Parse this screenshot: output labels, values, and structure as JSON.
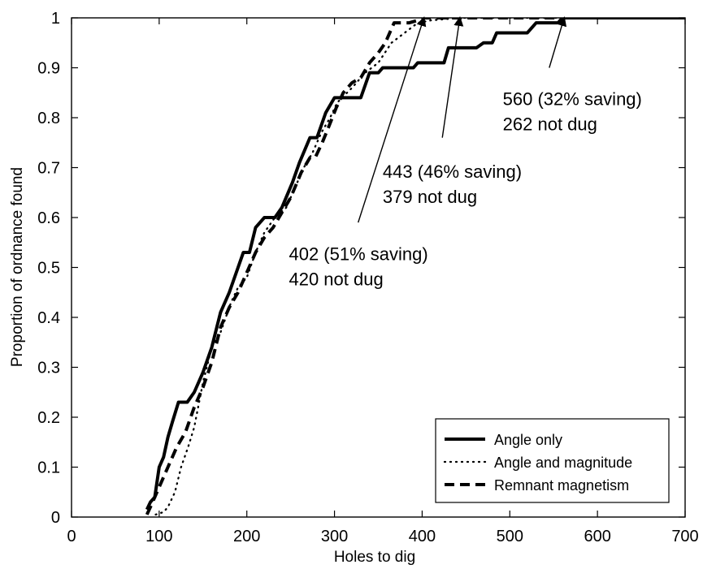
{
  "chart_data": {
    "type": "line",
    "title": "",
    "xlabel": "Holes to dig",
    "ylabel": "Proportion of ordnance found",
    "xlim": [
      0,
      700
    ],
    "ylim": [
      0,
      1
    ],
    "xticks": [
      0,
      100,
      200,
      300,
      400,
      500,
      600,
      700
    ],
    "yticks": [
      0,
      0.1,
      0.2,
      0.3,
      0.4,
      0.5,
      0.6,
      0.7,
      0.8,
      0.9,
      1
    ],
    "ytick_labels": [
      "0",
      "0.1",
      "0.2",
      "0.3",
      "0.4",
      "0.5",
      "0.6",
      "0.7",
      "0.8",
      "0.9",
      "1"
    ],
    "grid": false,
    "legend_position": "bottom-right",
    "series": [
      {
        "name": "Angle only",
        "line_style": "solid",
        "color": "#000000",
        "points": [
          [
            86,
            0.015
          ],
          [
            90,
            0.03
          ],
          [
            95,
            0.04
          ],
          [
            100,
            0.1
          ],
          [
            105,
            0.12
          ],
          [
            110,
            0.16
          ],
          [
            115,
            0.19
          ],
          [
            122,
            0.23
          ],
          [
            132,
            0.23
          ],
          [
            140,
            0.25
          ],
          [
            150,
            0.29
          ],
          [
            160,
            0.34
          ],
          [
            170,
            0.41
          ],
          [
            180,
            0.45
          ],
          [
            190,
            0.5
          ],
          [
            196,
            0.53
          ],
          [
            203,
            0.53
          ],
          [
            210,
            0.58
          ],
          [
            220,
            0.6
          ],
          [
            232,
            0.6
          ],
          [
            240,
            0.62
          ],
          [
            252,
            0.67
          ],
          [
            260,
            0.71
          ],
          [
            272,
            0.76
          ],
          [
            280,
            0.76
          ],
          [
            290,
            0.81
          ],
          [
            300,
            0.84
          ],
          [
            330,
            0.84
          ],
          [
            340,
            0.89
          ],
          [
            350,
            0.89
          ],
          [
            355,
            0.9
          ],
          [
            390,
            0.9
          ],
          [
            395,
            0.91
          ],
          [
            425,
            0.91
          ],
          [
            430,
            0.94
          ],
          [
            462,
            0.94
          ],
          [
            470,
            0.95
          ],
          [
            480,
            0.95
          ],
          [
            485,
            0.97
          ],
          [
            520,
            0.97
          ],
          [
            530,
            0.99
          ],
          [
            555,
            0.99
          ],
          [
            560,
            1.0
          ],
          [
            700,
            1.0
          ]
        ]
      },
      {
        "name": "Angle and magnitude",
        "line_style": "dotted",
        "color": "#000000",
        "points": [
          [
            96,
            0.005
          ],
          [
            105,
            0.01
          ],
          [
            110,
            0.02
          ],
          [
            118,
            0.05
          ],
          [
            125,
            0.1
          ],
          [
            133,
            0.14
          ],
          [
            140,
            0.18
          ],
          [
            150,
            0.27
          ],
          [
            160,
            0.34
          ],
          [
            170,
            0.37
          ],
          [
            182,
            0.43
          ],
          [
            190,
            0.46
          ],
          [
            200,
            0.48
          ],
          [
            210,
            0.53
          ],
          [
            220,
            0.57
          ],
          [
            232,
            0.6
          ],
          [
            245,
            0.62
          ],
          [
            255,
            0.66
          ],
          [
            265,
            0.7
          ],
          [
            275,
            0.73
          ],
          [
            285,
            0.77
          ],
          [
            295,
            0.8
          ],
          [
            303,
            0.83
          ],
          [
            320,
            0.86
          ],
          [
            335,
            0.89
          ],
          [
            350,
            0.91
          ],
          [
            365,
            0.95
          ],
          [
            380,
            0.97
          ],
          [
            395,
            0.99
          ],
          [
            410,
            0.995
          ],
          [
            443,
            1.0
          ],
          [
            700,
            1.0
          ]
        ]
      },
      {
        "name": "Remnant magnetism",
        "line_style": "dashed",
        "color": "#000000",
        "points": [
          [
            86,
            0.005
          ],
          [
            90,
            0.02
          ],
          [
            95,
            0.04
          ],
          [
            100,
            0.06
          ],
          [
            105,
            0.08
          ],
          [
            110,
            0.1
          ],
          [
            120,
            0.14
          ],
          [
            130,
            0.17
          ],
          [
            140,
            0.22
          ],
          [
            150,
            0.26
          ],
          [
            160,
            0.31
          ],
          [
            170,
            0.38
          ],
          [
            180,
            0.42
          ],
          [
            190,
            0.45
          ],
          [
            200,
            0.49
          ],
          [
            210,
            0.53
          ],
          [
            220,
            0.56
          ],
          [
            230,
            0.58
          ],
          [
            240,
            0.61
          ],
          [
            250,
            0.64
          ],
          [
            262,
            0.69
          ],
          [
            272,
            0.72
          ],
          [
            278,
            0.72
          ],
          [
            286,
            0.75
          ],
          [
            293,
            0.78
          ],
          [
            302,
            0.82
          ],
          [
            310,
            0.85
          ],
          [
            320,
            0.87
          ],
          [
            330,
            0.88
          ],
          [
            340,
            0.91
          ],
          [
            350,
            0.93
          ],
          [
            358,
            0.95
          ],
          [
            368,
            0.99
          ],
          [
            385,
            0.99
          ],
          [
            395,
            0.995
          ],
          [
            402,
            1.0
          ],
          [
            700,
            1.0
          ]
        ]
      }
    ],
    "annotations": [
      {
        "lines": [
          "402 (51% saving)",
          "420 not dug"
        ],
        "text_x": 248,
        "text_y": 0.515,
        "arrow_from": [
          327,
          0.59
        ],
        "arrow_to": [
          402,
          1.0
        ]
      },
      {
        "lines": [
          "443 (46% saving)",
          "379 not dug"
        ],
        "text_x": 355,
        "text_y": 0.68,
        "arrow_from": [
          423,
          0.76
        ],
        "arrow_to": [
          443,
          1.0
        ]
      },
      {
        "lines": [
          "560 (32% saving)",
          "262 not dug"
        ],
        "text_x": 492,
        "text_y": 0.825,
        "arrow_from": [
          545,
          0.9
        ],
        "arrow_to": [
          562,
          1.0
        ]
      }
    ]
  }
}
